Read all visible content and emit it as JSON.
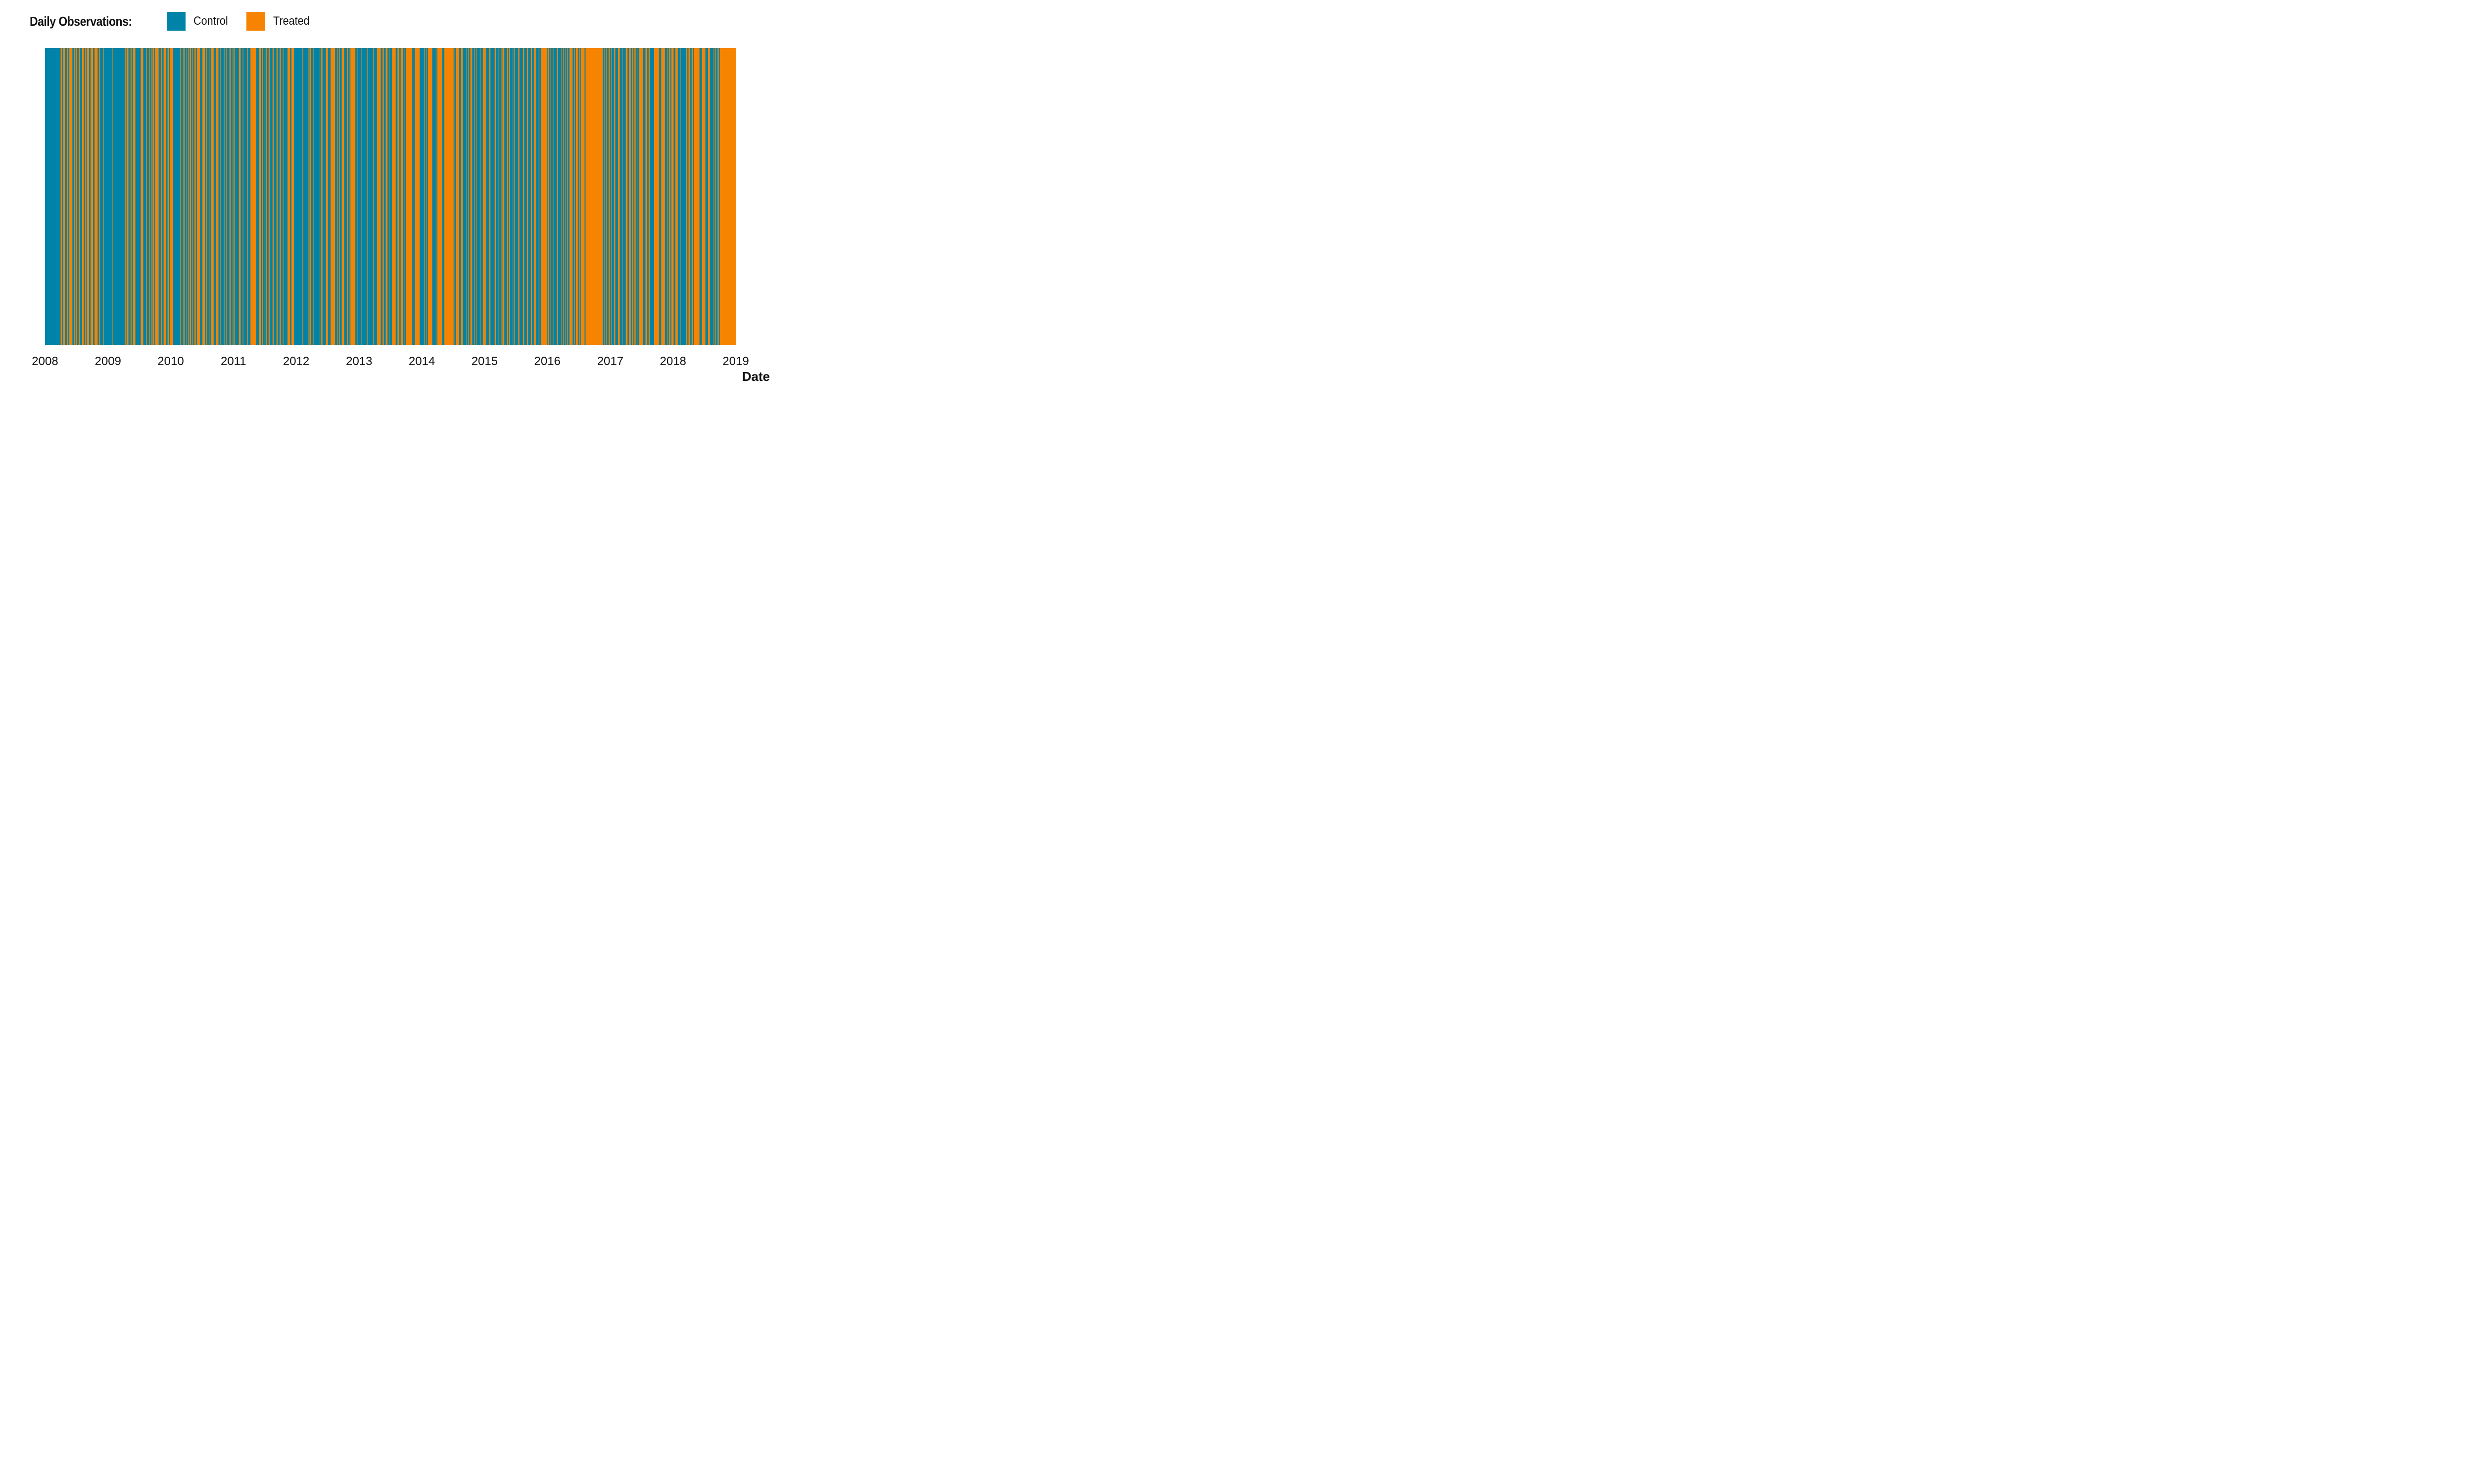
{
  "chart_data": {
    "type": "heatmap",
    "legend": {
      "title": "Daily Observations:",
      "placement": "top-left",
      "entries": [
        {
          "name": "Control",
          "color": "#0083a8"
        },
        {
          "name": "Treated",
          "color": "#f78400"
        }
      ]
    },
    "xlabel": "Date",
    "ylabel": "",
    "xlim": [
      "2008-01-01",
      "2019-01-01"
    ],
    "x_ticks": [
      "2008",
      "2009",
      "2010",
      "2011",
      "2012",
      "2013",
      "2014",
      "2015",
      "2016",
      "2017",
      "2018",
      "2019"
    ],
    "grid": false,
    "segments": [
      {
        "start": "2008-01-01",
        "end": "2008-03-31",
        "share_treated": 0.05
      },
      {
        "start": "2008-04-01",
        "end": "2008-11-15",
        "share_treated": 0.62
      },
      {
        "start": "2008-11-16",
        "end": "2009-03-31",
        "share_treated": 0.18
      },
      {
        "start": "2009-04-01",
        "end": "2009-12-31",
        "share_treated": 0.55
      },
      {
        "start": "2010-01-01",
        "end": "2010-03-10",
        "share_treated": 0.15
      },
      {
        "start": "2010-03-11",
        "end": "2010-12-31",
        "share_treated": 0.58
      },
      {
        "start": "2011-01-01",
        "end": "2011-03-31",
        "share_treated": 0.3
      },
      {
        "start": "2011-04-01",
        "end": "2011-12-31",
        "share_treated": 0.5
      },
      {
        "start": "2012-01-01",
        "end": "2012-06-30",
        "share_treated": 0.28
      },
      {
        "start": "2012-07-01",
        "end": "2012-12-31",
        "share_treated": 0.45
      },
      {
        "start": "2013-01-01",
        "end": "2013-04-10",
        "share_treated": 0.12
      },
      {
        "start": "2013-04-11",
        "end": "2013-12-31",
        "share_treated": 0.78
      },
      {
        "start": "2014-01-01",
        "end": "2014-03-31",
        "share_treated": 0.5
      },
      {
        "start": "2014-04-01",
        "end": "2014-06-30",
        "share_treated": 0.95
      },
      {
        "start": "2014-07-01",
        "end": "2014-12-31",
        "share_treated": 0.6
      },
      {
        "start": "2015-01-01",
        "end": "2015-03-31",
        "share_treated": 0.3
      },
      {
        "start": "2015-04-01",
        "end": "2015-12-31",
        "share_treated": 0.62
      },
      {
        "start": "2016-01-01",
        "end": "2016-03-31",
        "share_treated": 0.35
      },
      {
        "start": "2016-04-01",
        "end": "2016-07-31",
        "share_treated": 0.7
      },
      {
        "start": "2016-08-01",
        "end": "2016-11-15",
        "share_treated": 0.92
      },
      {
        "start": "2016-11-16",
        "end": "2017-03-31",
        "share_treated": 0.35
      },
      {
        "start": "2017-04-01",
        "end": "2017-12-31",
        "share_treated": 0.62
      },
      {
        "start": "2018-01-01",
        "end": "2018-03-31",
        "share_treated": 0.3
      },
      {
        "start": "2018-04-01",
        "end": "2018-06-30",
        "share_treated": 0.8
      },
      {
        "start": "2018-07-01",
        "end": "2018-09-30",
        "share_treated": 0.6
      },
      {
        "start": "2018-10-01",
        "end": "2018-12-31",
        "share_treated": 0.98
      }
    ]
  }
}
